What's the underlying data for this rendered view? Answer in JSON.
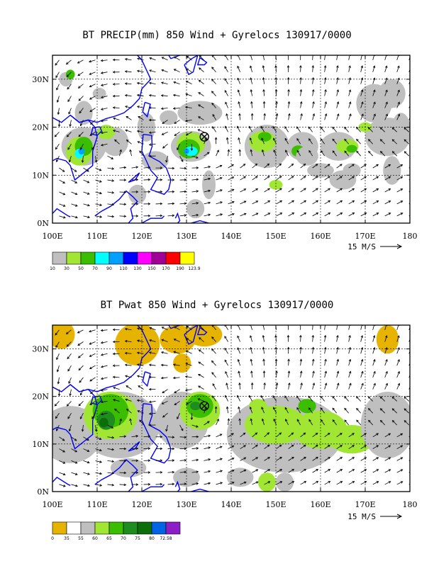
{
  "chart_data": [
    {
      "type": "heatmap",
      "title": "BT PRECIP(mm) 850 Wind + Gyrelocs 130917/0000",
      "x_ticks": [
        "100E",
        "110E",
        "120E",
        "130E",
        "140E",
        "150E",
        "160E",
        "170E",
        "180"
      ],
      "y_ticks": [
        "0N",
        "10N",
        "20N",
        "30N"
      ],
      "xlim": [
        100,
        180
      ],
      "ylim": [
        0,
        35
      ],
      "grid": true,
      "colorbar_levels": [
        "10",
        "30",
        "50",
        "70",
        "90",
        "110",
        "130",
        "150",
        "170",
        "190",
        "123.9"
      ],
      "colorbar_colors": [
        "#bfbfbf",
        "#a0e632",
        "#3cbe00",
        "#00ffff",
        "#00a0ff",
        "#0000ff",
        "#ff00ff",
        "#a00096",
        "#ff0000",
        "#ffff00"
      ],
      "wind_ref_label": "15 M/S",
      "gyre_location": {
        "lon": 134,
        "lat": 18
      }
    },
    {
      "type": "heatmap",
      "title": "BT Pwat 850 Wind + Gyrelocs 130917/0000",
      "x_ticks": [
        "100E",
        "110E",
        "120E",
        "130E",
        "140E",
        "150E",
        "160E",
        "170E",
        "180"
      ],
      "y_ticks": [
        "0N",
        "10N",
        "20N",
        "30N"
      ],
      "xlim": [
        100,
        180
      ],
      "ylim": [
        0,
        35
      ],
      "grid": true,
      "colorbar_levels": [
        "0",
        "35",
        "55",
        "60",
        "65",
        "70",
        "75",
        "80",
        "72.58"
      ],
      "colorbar_colors": [
        "#e6b400",
        "#ffffff",
        "#bfbfbf",
        "#a0e632",
        "#3cbe00",
        "#1e8c1e",
        "#0a6e0a",
        "#0064e6",
        "#8c1ec8"
      ],
      "wind_ref_label": "15 M/S",
      "gyre_location": {
        "lon": 134,
        "lat": 18
      }
    }
  ],
  "colors": {
    "coast": "#0000ff",
    "frame": "#000000"
  }
}
